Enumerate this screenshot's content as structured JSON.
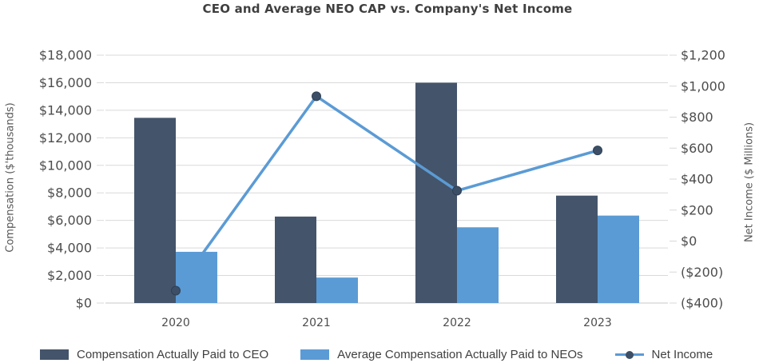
{
  "title": "CEO and Average NEO CAP vs. Company's Net Income",
  "chart_data": {
    "type": "bar+line",
    "title": "CEO and Average NEO CAP vs. Company's Net Income",
    "categories": [
      "2020",
      "2021",
      "2022",
      "2023"
    ],
    "series": [
      {
        "id": "ceo-cap",
        "name": "Compensation Actually Paid to CEO",
        "type": "bar",
        "axis": "left",
        "color": "#44546A",
        "values": [
          13450,
          6280,
          16000,
          7800
        ]
      },
      {
        "id": "neo-cap",
        "name": "Average Compensation Actually Paid to NEOs",
        "type": "bar",
        "axis": "left",
        "color": "#5B9BD5",
        "values": [
          3720,
          1850,
          5500,
          6350
        ]
      },
      {
        "id": "net-income",
        "name": "Net Income",
        "type": "line",
        "axis": "right",
        "color": "#5B9BD5",
        "marker_color": "#3C4F66",
        "values": [
          -320,
          935,
          325,
          585
        ]
      }
    ],
    "left_axis": {
      "label": "Compensation ($'thousands)",
      "min": 0,
      "max": 18000,
      "step": 2000,
      "tick_labels": [
        "$0",
        "$2,000",
        "$4,000",
        "$6,000",
        "$8,000",
        "$10,000",
        "$12,000",
        "$14,000",
        "$16,000",
        "$18,000"
      ]
    },
    "right_axis": {
      "label": "Net Income ($ Millions)",
      "min": -400,
      "max": 1200,
      "step": 200,
      "tick_labels": [
        "($400)",
        "($200)",
        "$0",
        "$200",
        "$400",
        "$600",
        "$800",
        "$1,000",
        "$1,200"
      ]
    },
    "grid": true,
    "legend_position": "bottom",
    "colors": {
      "grid_line": "#D9D9D9",
      "axis_line": "#C9C9C9",
      "tick_text": "#4D4D4D",
      "title_text": "#3F3F3F",
      "axis_title_text": "#595959",
      "legend_text": "#404040"
    }
  }
}
